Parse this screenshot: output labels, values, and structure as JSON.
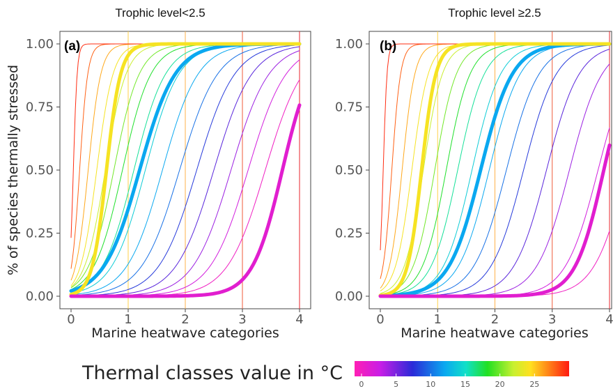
{
  "chart_data": [
    {
      "type": "line",
      "panel_label": "(a)",
      "title": "Trophic level<2.5",
      "xlabel": "Marine heatwave categories",
      "ylabel": "% of species thermally stressed",
      "xlim": [
        0,
        4
      ],
      "ylim": [
        0,
        1
      ],
      "x_ticks": [
        "0",
        "1",
        "2",
        "3",
        "4"
      ],
      "y_ticks": [
        "0.00",
        "0.25",
        "0.50",
        "0.75",
        "1.00"
      ],
      "vertical_lines": [
        {
          "x": 1,
          "color": "#ffd24a"
        },
        {
          "x": 2,
          "color": "#ffb04a"
        },
        {
          "x": 3,
          "color": "#ef5a3a"
        },
        {
          "x": 4,
          "color": "#e8262e"
        }
      ],
      "series": [
        {
          "thermal_class": 0,
          "midpoint": 3.4,
          "steepness": 3.0
        },
        {
          "thermal_class": 2,
          "midpoint": 3.1,
          "steepness": 3.0
        },
        {
          "thermal_class": 4,
          "midpoint": 2.8,
          "steepness": 3.0
        },
        {
          "thermal_class": 6,
          "midpoint": 2.5,
          "steepness": 3.0
        },
        {
          "thermal_class": 8,
          "midpoint": 2.2,
          "steepness": 3.0
        },
        {
          "thermal_class": 10,
          "midpoint": 1.9,
          "steepness": 3.0
        },
        {
          "thermal_class": 12,
          "midpoint": 1.6,
          "steepness": 3.2
        },
        {
          "thermal_class": 14,
          "midpoint": 1.3,
          "steepness": 3.4
        },
        {
          "thermal_class": 16,
          "midpoint": 1.1,
          "steepness": 3.6
        },
        {
          "thermal_class": 18,
          "midpoint": 0.9,
          "steepness": 4.0
        },
        {
          "thermal_class": 20,
          "midpoint": 0.75,
          "steepness": 4.5
        },
        {
          "thermal_class": 22,
          "midpoint": 0.6,
          "steepness": 5.5
        },
        {
          "thermal_class": 24,
          "midpoint": 0.45,
          "steepness": 7
        },
        {
          "thermal_class": 26,
          "midpoint": 0.3,
          "steepness": 9
        },
        {
          "thermal_class": 28,
          "midpoint": 0.15,
          "steepness": 14
        },
        {
          "thermal_class": 29.5,
          "midpoint": 0.04,
          "steepness": 30
        }
      ],
      "highlighted_series": [
        {
          "thermal_class": 12,
          "midpoint": 1.2,
          "steepness": 3.2
        },
        {
          "thermal_class": 24,
          "midpoint": 0.62,
          "steepness": 8
        },
        {
          "thermal_class": 1,
          "midpoint": 3.7,
          "steepness": 3.8
        }
      ]
    },
    {
      "type": "line",
      "panel_label": "(b)",
      "title": "Trophic level ≥2.5",
      "xlabel": "Marine heatwave categories",
      "ylabel": "",
      "xlim": [
        0,
        4
      ],
      "ylim": [
        0,
        1
      ],
      "x_ticks": [
        "0",
        "1",
        "2",
        "3",
        "4"
      ],
      "y_ticks": [
        "0.00",
        "0.25",
        "0.50",
        "0.75",
        "1.00"
      ],
      "vertical_lines": [
        {
          "x": 1,
          "color": "#ffd24a"
        },
        {
          "x": 2,
          "color": "#ffb04a"
        },
        {
          "x": 3,
          "color": "#ef5a3a"
        },
        {
          "x": 4,
          "color": "#e8262e"
        }
      ],
      "series": [
        {
          "thermal_class": 0,
          "midpoint": 4.3,
          "steepness": 3.5
        },
        {
          "thermal_class": 2,
          "midpoint": 3.8,
          "steepness": 3.5
        },
        {
          "thermal_class": 4,
          "midpoint": 3.3,
          "steepness": 3.5
        },
        {
          "thermal_class": 6,
          "midpoint": 2.9,
          "steepness": 3.5
        },
        {
          "thermal_class": 8,
          "midpoint": 2.5,
          "steepness": 3.5
        },
        {
          "thermal_class": 10,
          "midpoint": 2.2,
          "steepness": 3.5
        },
        {
          "thermal_class": 12,
          "midpoint": 1.9,
          "steepness": 3.7
        },
        {
          "thermal_class": 14,
          "midpoint": 1.6,
          "steepness": 4.0
        },
        {
          "thermal_class": 16,
          "midpoint": 1.35,
          "steepness": 4.3
        },
        {
          "thermal_class": 18,
          "midpoint": 1.15,
          "steepness": 4.8
        },
        {
          "thermal_class": 20,
          "midpoint": 0.95,
          "steepness": 5.3
        },
        {
          "thermal_class": 22,
          "midpoint": 0.75,
          "steepness": 6
        },
        {
          "thermal_class": 24,
          "midpoint": 0.55,
          "steepness": 7
        },
        {
          "thermal_class": 26,
          "midpoint": 0.38,
          "steepness": 9
        },
        {
          "thermal_class": 28,
          "midpoint": 0.2,
          "steepness": 13
        },
        {
          "thermal_class": 29.5,
          "midpoint": 0.05,
          "steepness": 30
        }
      ],
      "highlighted_series": [
        {
          "thermal_class": 12,
          "midpoint": 1.75,
          "steepness": 3.6
        },
        {
          "thermal_class": 24,
          "midpoint": 0.72,
          "steepness": 8
        },
        {
          "thermal_class": 1,
          "midpoint": 3.9,
          "steepness": 4
        }
      ]
    }
  ],
  "legend": {
    "title": "Thermal classes value in °C",
    "ticks": [
      "0",
      "5",
      "10",
      "15",
      "20",
      "25"
    ],
    "range": [
      -1,
      30
    ],
    "tick_values": [
      0,
      5,
      10,
      15,
      20,
      25
    ]
  }
}
